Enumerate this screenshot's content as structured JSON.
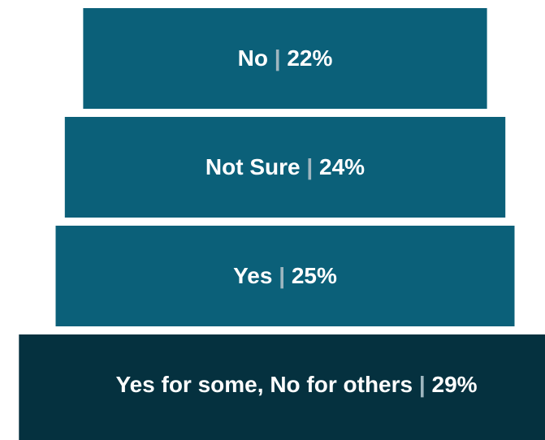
{
  "chart_data": {
    "type": "pyramid",
    "categories": [
      "No",
      "Not Sure",
      "Yes",
      "Yes for some, No for others"
    ],
    "values": [
      22,
      24,
      25,
      29
    ],
    "value_labels": [
      "22%",
      "24%",
      "25%",
      "29%"
    ],
    "separator": "|",
    "colors": [
      "#0b6079",
      "#0b6079",
      "#0b6079",
      "#05313f"
    ]
  }
}
